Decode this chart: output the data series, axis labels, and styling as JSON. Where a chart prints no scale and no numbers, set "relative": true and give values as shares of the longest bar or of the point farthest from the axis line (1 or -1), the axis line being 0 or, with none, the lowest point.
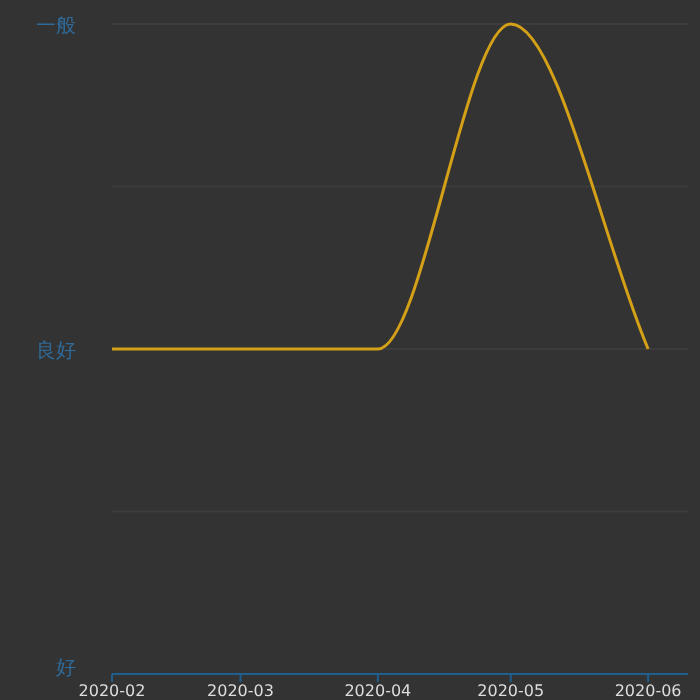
{
  "chart_data": {
    "type": "line",
    "x": [
      "2020-02",
      "2020-03",
      "2020-04",
      "2020-05",
      "2020-06"
    ],
    "series": [
      {
        "color": "#d4a017",
        "values": [
          0.5,
          0.5,
          0.5,
          1,
          0.5
        ]
      }
    ],
    "relative": true,
    "xlim": [
      "2020-02",
      "2020-06-10"
    ],
    "xticks": [
      "2020-02",
      "2020-03",
      "2020-04",
      "2020-05",
      "2020-06"
    ],
    "y_categories": [
      "一般",
      null,
      "良好",
      null,
      "好"
    ],
    "grid": "y",
    "marker": "none",
    "line_style": "solid"
  }
}
